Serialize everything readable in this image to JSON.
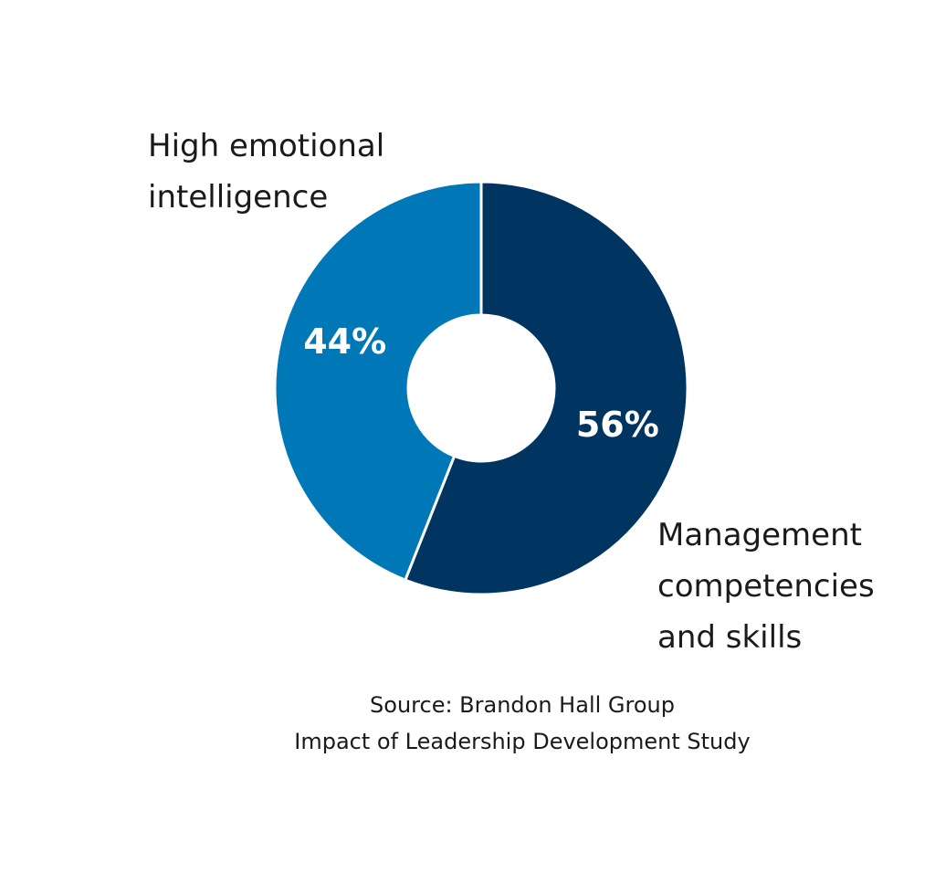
{
  "chart_data": {
    "type": "donut",
    "categories": [
      "Management competencies and skills",
      "High emotional intelligence"
    ],
    "values": [
      56,
      44
    ],
    "value_labels": [
      "56%",
      "44%"
    ],
    "colors": [
      "#003461",
      "#0077b6"
    ],
    "source": [
      "Source: Brandon Hall Group",
      "Impact of Leadership Development Study"
    ]
  }
}
